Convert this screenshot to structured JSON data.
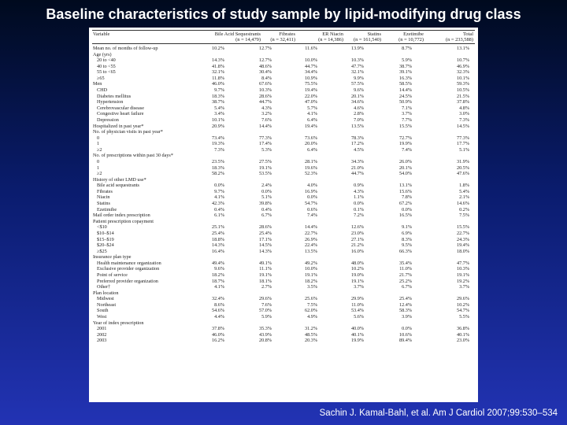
{
  "title": "Baseline characteristics of study sample by lipid-modifying drug class",
  "citation": "Sachin J. Kamal-Bahl, et al. Am J Cardiol 2007;99:530–534",
  "table": {
    "headers": [
      {
        "line1": "Variable",
        "line2": ""
      },
      {
        "line1": "Bile Acid Sequestrants",
        "line2": "(n = 14,479)"
      },
      {
        "line1": "Fibrates",
        "line2": "(n = 32,411)"
      },
      {
        "line1": "ER Niacin",
        "line2": "(n = 14,386)"
      },
      {
        "line1": "Statins",
        "line2": "(n = 161,540)"
      },
      {
        "line1": "Ezetimibe",
        "line2": "(n = 10,772)"
      },
      {
        "line1": "Total",
        "line2": "(n = 233,588)"
      }
    ],
    "rows": [
      {
        "label": "Mean no. of months of follow-up",
        "indent": false,
        "values": [
          "10.2%",
          "12.7%",
          "11.6%",
          "13.9%",
          "8.7%",
          "13.1%"
        ]
      },
      {
        "label": "Age (yrs)",
        "indent": false,
        "values": [
          "",
          "",
          "",
          "",
          "",
          ""
        ]
      },
      {
        "label": "20 to <40",
        "indent": true,
        "values": [
          "14.3%",
          "12.7%",
          "10.0%",
          "10.3%",
          "5.9%",
          "10.7%"
        ]
      },
      {
        "label": "40 to <55",
        "indent": true,
        "values": [
          "41.8%",
          "48.6%",
          "44.7%",
          "47.7%",
          "38.7%",
          "46.9%"
        ]
      },
      {
        "label": "55 to <65",
        "indent": true,
        "values": [
          "32.1%",
          "30.4%",
          "34.4%",
          "32.1%",
          "39.1%",
          "32.3%"
        ]
      },
      {
        "label": "≥65",
        "indent": true,
        "values": [
          "11.8%",
          "8.4%",
          "10.9%",
          "9.9%",
          "16.3%",
          "10.1%"
        ]
      },
      {
        "label": "Men",
        "indent": false,
        "values": [
          "46.0%",
          "67.6%",
          "75.5%",
          "57.5%",
          "58.5%",
          "59.3%"
        ]
      },
      {
        "label": "CHD",
        "indent": true,
        "values": [
          "9.7%",
          "10.3%",
          "19.4%",
          "9.6%",
          "14.4%",
          "10.5%"
        ]
      },
      {
        "label": "Diabetes mellitus",
        "indent": true,
        "values": [
          "18.3%",
          "28.6%",
          "22.0%",
          "20.1%",
          "24.5%",
          "21.5%"
        ]
      },
      {
        "label": "Hypertension",
        "indent": true,
        "values": [
          "38.7%",
          "44.7%",
          "47.0%",
          "34.6%",
          "50.9%",
          "37.8%"
        ]
      },
      {
        "label": "Cerebrovascular disease",
        "indent": true,
        "values": [
          "5.4%",
          "4.3%",
          "5.7%",
          "4.6%",
          "7.1%",
          "4.8%"
        ]
      },
      {
        "label": "Congestive heart failure",
        "indent": true,
        "values": [
          "3.4%",
          "3.2%",
          "4.1%",
          "2.8%",
          "3.7%",
          "3.0%"
        ]
      },
      {
        "label": "Depression",
        "indent": true,
        "values": [
          "10.1%",
          "7.6%",
          "6.4%",
          "7.0%",
          "7.7%",
          "7.3%"
        ]
      },
      {
        "label": "Hospitalized in past year*",
        "indent": false,
        "values": [
          "20.9%",
          "14.4%",
          "19.4%",
          "13.5%",
          "15.5%",
          "14.5%"
        ]
      },
      {
        "label": "No. of physician visits in past year*",
        "indent": false,
        "values": [
          "",
          "",
          "",
          "",
          "",
          ""
        ]
      },
      {
        "label": "0",
        "indent": true,
        "values": [
          "73.4%",
          "77.3%",
          "73.6%",
          "78.3%",
          "72.7%",
          "77.3%"
        ]
      },
      {
        "label": "1",
        "indent": true,
        "values": [
          "19.3%",
          "17.4%",
          "20.0%",
          "17.2%",
          "19.9%",
          "17.7%"
        ]
      },
      {
        "label": "≥2",
        "indent": true,
        "values": [
          "7.3%",
          "5.3%",
          "6.4%",
          "4.5%",
          "7.4%",
          "5.1%"
        ]
      },
      {
        "label": "No. of prescriptions within past 30 days*",
        "indent": false,
        "values": [
          "",
          "",
          "",
          "",
          "",
          ""
        ]
      },
      {
        "label": "0",
        "indent": true,
        "values": [
          "23.5%",
          "27.5%",
          "28.1%",
          "34.3%",
          "26.0%",
          "31.9%"
        ]
      },
      {
        "label": "1",
        "indent": true,
        "values": [
          "18.3%",
          "19.1%",
          "19.6%",
          "21.0%",
          "20.1%",
          "20.5%"
        ]
      },
      {
        "label": "≥2",
        "indent": true,
        "values": [
          "58.2%",
          "53.5%",
          "52.3%",
          "44.7%",
          "54.0%",
          "47.6%"
        ]
      },
      {
        "label": "History of other LMD use*",
        "indent": false,
        "values": [
          "",
          "",
          "",
          "",
          "",
          ""
        ]
      },
      {
        "label": "Bile acid sequestrants",
        "indent": true,
        "values": [
          "0.0%",
          "2.4%",
          "4.0%",
          "0.9%",
          "13.1%",
          "1.8%"
        ]
      },
      {
        "label": "Fibrates",
        "indent": true,
        "values": [
          "9.7%",
          "0.0%",
          "16.9%",
          "4.3%",
          "15.6%",
          "5.4%"
        ]
      },
      {
        "label": "Niacin",
        "indent": true,
        "values": [
          "4.1%",
          "5.1%",
          "0.0%",
          "1.1%",
          "7.8%",
          "2.1%"
        ]
      },
      {
        "label": "Statins",
        "indent": true,
        "values": [
          "42.3%",
          "39.8%",
          "54.7%",
          "0.0%",
          "67.2%",
          "14.6%"
        ]
      },
      {
        "label": "Ezetimibe",
        "indent": true,
        "values": [
          "0.4%",
          "0.4%",
          "0.6%",
          "0.1%",
          "0.0%",
          "0.2%"
        ]
      },
      {
        "label": "Mail order index prescription",
        "indent": false,
        "values": [
          "6.1%",
          "6.7%",
          "7.4%",
          "7.2%",
          "16.5%",
          "7.5%"
        ]
      },
      {
        "label": "Patient prescription copayment",
        "indent": false,
        "values": [
          "",
          "",
          "",
          "",
          "",
          ""
        ]
      },
      {
        "label": "<$10",
        "indent": true,
        "values": [
          "25.1%",
          "28.6%",
          "14.4%",
          "12.6%",
          "9.1%",
          "15.5%"
        ]
      },
      {
        "label": "$10–$14",
        "indent": true,
        "values": [
          "25.4%",
          "25.4%",
          "22.7%",
          "23.0%",
          "6.9%",
          "22.7%"
        ]
      },
      {
        "label": "$15–$19",
        "indent": true,
        "values": [
          "18.8%",
          "17.1%",
          "26.9%",
          "27.1%",
          "8.3%",
          "24.3%"
        ]
      },
      {
        "label": "$20–$24",
        "indent": true,
        "values": [
          "14.3%",
          "14.5%",
          "22.4%",
          "21.2%",
          "9.5%",
          "19.4%"
        ]
      },
      {
        "label": "≥$25",
        "indent": true,
        "values": [
          "16.4%",
          "14.3%",
          "13.5%",
          "16.0%",
          "66.3%",
          "18.0%"
        ]
      },
      {
        "label": "Insurance plan type",
        "indent": false,
        "values": [
          "",
          "",
          "",
          "",
          "",
          ""
        ]
      },
      {
        "label": "Health maintenance organization",
        "indent": true,
        "values": [
          "49.4%",
          "49.1%",
          "49.2%",
          "48.0%",
          "35.4%",
          "47.7%"
        ]
      },
      {
        "label": "Exclusive provider organization",
        "indent": true,
        "values": [
          "9.6%",
          "11.1%",
          "10.0%",
          "10.2%",
          "11.0%",
          "10.3%"
        ]
      },
      {
        "label": "Point of service",
        "indent": true,
        "values": [
          "18.2%",
          "19.1%",
          "19.1%",
          "19.0%",
          "21.7%",
          "19.1%"
        ]
      },
      {
        "label": "Preferred provider organization",
        "indent": true,
        "values": [
          "18.7%",
          "18.1%",
          "18.2%",
          "19.1%",
          "25.2%",
          "19.2%"
        ]
      },
      {
        "label": "Other†",
        "indent": true,
        "values": [
          "4.1%",
          "2.7%",
          "3.5%",
          "3.7%",
          "6.7%",
          "3.7%"
        ]
      },
      {
        "label": "Plan location",
        "indent": false,
        "values": [
          "",
          "",
          "",
          "",
          "",
          ""
        ]
      },
      {
        "label": "Midwest",
        "indent": true,
        "values": [
          "32.4%",
          "29.6%",
          "25.6%",
          "29.9%",
          "25.4%",
          "29.6%"
        ]
      },
      {
        "label": "Northeast",
        "indent": true,
        "values": [
          "8.6%",
          "7.6%",
          "7.5%",
          "11.0%",
          "12.4%",
          "10.2%"
        ]
      },
      {
        "label": "South",
        "indent": true,
        "values": [
          "54.6%",
          "57.0%",
          "62.0%",
          "53.4%",
          "58.3%",
          "54.7%"
        ]
      },
      {
        "label": "West",
        "indent": true,
        "values": [
          "4.4%",
          "5.9%",
          "4.9%",
          "5.6%",
          "3.9%",
          "5.5%"
        ]
      },
      {
        "label": "Year of index prescription",
        "indent": false,
        "values": [
          "",
          "",
          "",
          "",
          "",
          ""
        ]
      },
      {
        "label": "2001",
        "indent": true,
        "values": [
          "37.8%",
          "35.3%",
          "31.2%",
          "40.0%",
          "0.0%",
          "36.8%"
        ]
      },
      {
        "label": "2002",
        "indent": true,
        "values": [
          "46.0%",
          "43.9%",
          "48.5%",
          "40.1%",
          "10.6%",
          "40.1%"
        ]
      },
      {
        "label": "2003",
        "indent": true,
        "values": [
          "16.2%",
          "20.8%",
          "20.3%",
          "19.9%",
          "89.4%",
          "23.0%"
        ]
      }
    ],
    "footnotes": [
      "* Based on time period before index prescription.",
      "† Contains insurance plan types \"independent\" or \"unknown.\""
    ]
  }
}
